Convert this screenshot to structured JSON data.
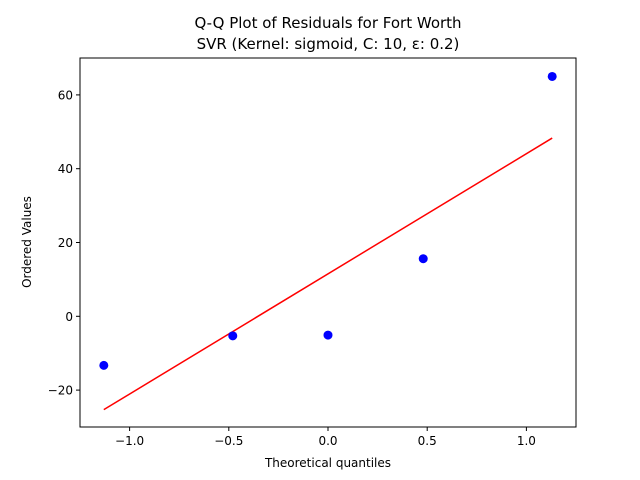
{
  "chart_data": {
    "type": "scatter",
    "title": "Q-Q Plot of Residuals for Fort Worth",
    "subtitle": "SVR (Kernel: sigmoid, C: 10, ε: 0.2)",
    "xlabel": "Theoretical quantiles",
    "ylabel": "Ordered Values",
    "xlim": [
      -1.25,
      1.25
    ],
    "ylim": [
      -30,
      70
    ],
    "xticks": [
      -1.0,
      -0.5,
      0.0,
      0.5,
      1.0
    ],
    "xtick_labels": [
      "−1.0",
      "−0.5",
      "0.0",
      "0.5",
      "1.0"
    ],
    "yticks": [
      -20,
      0,
      20,
      40,
      60
    ],
    "ytick_labels": [
      "−20",
      "0",
      "20",
      "40",
      "60"
    ],
    "grid": false,
    "series": [
      {
        "kind": "points",
        "color": "#0000ff",
        "x": [
          -1.13,
          -0.48,
          0.0,
          0.48,
          1.13
        ],
        "y": [
          -13.3,
          -5.3,
          -5.1,
          15.6,
          65.0
        ]
      },
      {
        "kind": "line",
        "color": "#ff0000",
        "x": [
          -1.13,
          1.13
        ],
        "y": [
          -25.3,
          48.3
        ]
      }
    ]
  }
}
